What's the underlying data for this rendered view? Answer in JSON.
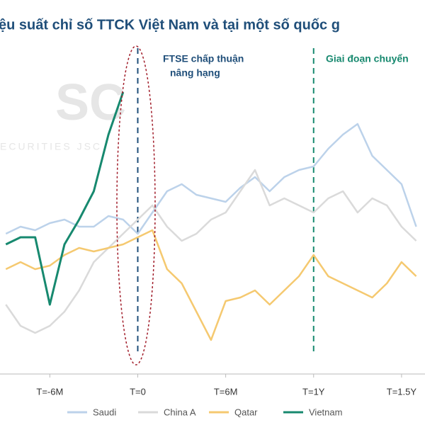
{
  "chart_data": {
    "type": "line",
    "title": "ệu suất chỉ số TTCK Việt Nam và tại một số quốc g",
    "annotations": [
      "FTSE chấp thuận",
      "nâng hạng",
      "Giai đoạn chuyển"
    ],
    "watermark": [
      "SC",
      "ECURITIES  JSC"
    ],
    "x": [
      -9,
      -8,
      -7,
      -6,
      -5,
      -4,
      -3,
      -2,
      -1,
      0,
      1,
      2,
      3,
      4,
      5,
      6,
      7,
      8,
      9,
      10,
      11,
      12,
      13,
      14,
      15,
      16,
      17,
      18,
      19
    ],
    "xlim": [
      -9.4,
      19.6
    ],
    "xticks": [
      {
        "value": -6,
        "label": "T=-6M"
      },
      {
        "value": 0,
        "label": "T=0"
      },
      {
        "value": 6,
        "label": "T=6M"
      },
      {
        "value": 12,
        "label": "T=1Y"
      },
      {
        "value": 18,
        "label": "T=1.5Y"
      }
    ],
    "ylim": [
      0,
      460
    ],
    "series": [
      {
        "name": "Saudi",
        "color": "#bcd2ea",
        "values": [
          190,
          200,
          195,
          205,
          210,
          200,
          200,
          215,
          210,
          190,
          220,
          250,
          260,
          245,
          240,
          235,
          255,
          270,
          250,
          270,
          280,
          285,
          310,
          330,
          345,
          300,
          280,
          260,
          200
        ]
      },
      {
        "name": "China A",
        "color": "#dadada",
        "values": [
          90,
          60,
          50,
          60,
          80,
          110,
          150,
          170,
          190,
          210,
          230,
          200,
          180,
          190,
          210,
          220,
          250,
          280,
          230,
          240,
          230,
          220,
          240,
          250,
          220,
          240,
          230,
          200,
          180
        ]
      },
      {
        "name": "Qatar",
        "color": "#f5c970",
        "values": [
          140,
          150,
          140,
          145,
          160,
          170,
          165,
          170,
          175,
          185,
          195,
          140,
          120,
          80,
          40,
          95,
          100,
          110,
          90,
          110,
          130,
          160,
          130,
          120,
          110,
          100,
          120,
          150,
          130
        ]
      },
      {
        "name": "Vietnam",
        "color": "#17896f",
        "values": [
          175,
          185,
          185,
          90,
          175,
          210,
          250,
          330,
          390,
          null,
          null,
          null,
          null,
          null,
          null,
          null,
          null,
          null,
          null,
          null,
          null,
          null,
          null,
          null,
          null,
          null,
          null,
          null,
          null
        ]
      }
    ]
  }
}
